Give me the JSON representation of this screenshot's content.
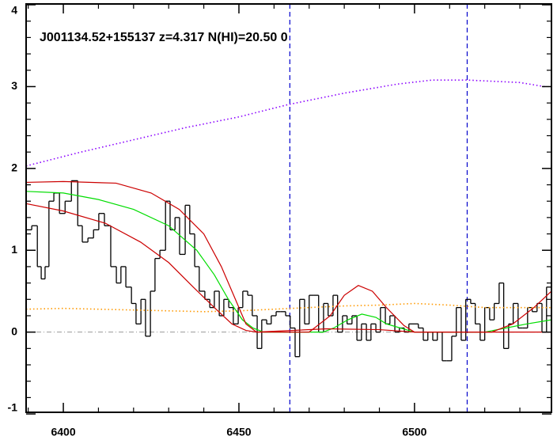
{
  "chart_data": {
    "type": "line",
    "title": "J001134.52+155137 z=4.317 N(HI)=20.50 0",
    "xlim": [
      6389.4,
      6539
    ],
    "ylim": [
      -0.98,
      4.01
    ],
    "xticks": [
      6400,
      6450,
      6500
    ],
    "yticks": [
      -1,
      0,
      1,
      2,
      3,
      4
    ],
    "xminorticks": [
      6390,
      6410,
      6420,
      6430,
      6440,
      6460,
      6470,
      6480,
      6490,
      6510,
      6520,
      6530
    ],
    "yminorticks": [
      -0.8,
      -0.6,
      -0.4,
      -0.2,
      0.2,
      0.4,
      0.6,
      0.8,
      1.2,
      1.4,
      1.6,
      1.8,
      2.2,
      2.4,
      2.6,
      2.8,
      3.2,
      3.4,
      3.6,
      3.8
    ],
    "hlines": [
      {
        "value": 0,
        "color": "#999999"
      }
    ],
    "vlines": [
      {
        "value": 6464.5,
        "color": "#0000cc"
      },
      {
        "value": 6515.0,
        "color": "#0000cc"
      }
    ],
    "series": [
      {
        "style": "steps",
        "color": "#000000",
        "x": [
          6389.4,
          6391.0,
          6392.6,
          6393.7,
          6394.8,
          6395.9,
          6397.3,
          6398.9,
          6400.5,
          6402.3,
          6404.1,
          6405.4,
          6407.0,
          6408.6,
          6410.1,
          6411.7,
          6413.5,
          6415.1,
          6416.4,
          6417.8,
          6419.4,
          6420.7,
          6422.1,
          6423.4,
          6424.8,
          6426.1,
          6427.5,
          6429.1,
          6430.4,
          6431.8,
          6433.1,
          6434.7,
          6436.0,
          6437.4,
          6438.7,
          6440.3,
          6441.7,
          6443.0,
          6444.4,
          6445.7,
          6447.1,
          6448.4,
          6449.8,
          6451.1,
          6452.5,
          6453.8,
          6455.2,
          6456.5,
          6457.9,
          6459.2,
          6460.6,
          6461.9,
          6463.3,
          6464.6,
          6466.0,
          6467.3,
          6468.7,
          6470.0,
          6471.4,
          6472.7,
          6474.1,
          6475.4,
          6476.8,
          6478.1,
          6479.5,
          6480.8,
          6482.2,
          6483.6,
          6484.9,
          6486.3,
          6487.6,
          6489.0,
          6490.3,
          6491.7,
          6493.0,
          6494.4,
          6495.7,
          6497.1,
          6498.4,
          6499.8,
          6501.1,
          6502.5,
          6503.8,
          6505.2,
          6506.5,
          6507.9,
          6509.2,
          6510.6,
          6511.9,
          6513.3,
          6514.6,
          6516.0,
          6517.3,
          6518.7,
          6520.0,
          6521.4,
          6522.7,
          6524.1,
          6525.4,
          6526.8,
          6528.1,
          6529.5,
          6530.8,
          6532.2,
          6533.5,
          6534.9,
          6536.3,
          6537.6
        ],
        "values": [
          1.25,
          1.3,
          0.8,
          0.65,
          0.8,
          1.6,
          1.7,
          1.45,
          1.6,
          1.85,
          1.3,
          1.1,
          1.15,
          1.25,
          1.45,
          1.3,
          0.8,
          0.6,
          0.8,
          0.55,
          0.35,
          0.1,
          0.4,
          -0.05,
          0.5,
          0.9,
          1.0,
          1.6,
          1.25,
          1.4,
          0.95,
          1.55,
          1.2,
          0.8,
          0.5,
          0.4,
          0.3,
          0.5,
          0.2,
          0.4,
          0.3,
          0.1,
          0.3,
          0.5,
          0.45,
          0.2,
          -0.2,
          0.15,
          0.1,
          0.2,
          0.25,
          0.25,
          0.2,
          0.05,
          -0.3,
          0.4,
          0.1,
          0.45,
          0.45,
          0.0,
          0.35,
          0.2,
          0.45,
          0.0,
          0.2,
          0.1,
          0.2,
          -0.1,
          0.1,
          -0.1,
          0.1,
          0.0,
          0.3,
          0.1,
          0.2,
          0.0,
          0.05,
          0.0,
          0.1,
          0.1,
          0.05,
          -0.1,
          0.0,
          -0.1,
          0.0,
          -0.35,
          -0.35,
          -0.05,
          0.3,
          -0.1,
          0.4,
          0.35,
          0.1,
          -0.1,
          0.3,
          0.15,
          0.35,
          0.6,
          -0.2,
          0.1,
          0.35,
          0.05,
          0.05,
          0.3,
          0.25,
          0.35,
          0.0,
          0.55
        ]
      },
      {
        "style": "dotted",
        "color": "#8a00ff",
        "x": [
          6389.4,
          6405,
          6420,
          6435,
          6450,
          6464,
          6480,
          6495,
          6505,
          6515,
          6530,
          6537
        ],
        "values": [
          2.03,
          2.2,
          2.35,
          2.5,
          2.63,
          2.78,
          2.92,
          3.03,
          3.08,
          3.08,
          3.05,
          3.0
        ]
      },
      {
        "style": "dotted",
        "color": "#ff9900",
        "x": [
          6389.4,
          6400,
          6410,
          6420,
          6430,
          6440,
          6450,
          6460,
          6470,
          6480,
          6490,
          6500,
          6510,
          6520,
          6530,
          6539
        ],
        "values": [
          0.28,
          0.29,
          0.28,
          0.27,
          0.26,
          0.25,
          0.26,
          0.28,
          0.3,
          0.32,
          0.33,
          0.35,
          0.33,
          0.3,
          0.3,
          0.3
        ]
      },
      {
        "style": "solid",
        "color": "#00dd00",
        "x": [
          6389.4,
          6400,
          6410,
          6420,
          6430,
          6438,
          6443,
          6447,
          6451,
          6454,
          6457,
          6474,
          6477,
          6481,
          6485,
          6489,
          6492,
          6496,
          6500,
          6520,
          6526,
          6532,
          6539
        ],
        "values": [
          1.72,
          1.7,
          1.62,
          1.5,
          1.3,
          1.0,
          0.7,
          0.4,
          0.15,
          0.05,
          0,
          0,
          0.05,
          0.15,
          0.22,
          0.18,
          0.1,
          0.05,
          0,
          0,
          0.05,
          0.1,
          0.15
        ]
      },
      {
        "style": "solid",
        "color": "#cc0000",
        "x": [
          6389.4,
          6400,
          6415,
          6425,
          6433,
          6440,
          6445,
          6449,
          6452,
          6455,
          6470,
          6476,
          6480,
          6484,
          6488,
          6492,
          6497,
          6500,
          6522,
          6528,
          6534,
          6539
        ],
        "values": [
          1.83,
          1.84,
          1.82,
          1.7,
          1.5,
          1.2,
          0.8,
          0.4,
          0.1,
          0,
          0,
          0.2,
          0.45,
          0.57,
          0.5,
          0.3,
          0.08,
          0,
          0,
          0.1,
          0.3,
          0.5
        ]
      },
      {
        "style": "solid",
        "color": "#cc0000",
        "x": [
          6389.4,
          6400,
          6412,
          6422,
          6430,
          6437,
          6443,
          6448,
          6452,
          6455,
          6465,
          6475,
          6490,
          6500,
          6539
        ],
        "values": [
          1.57,
          1.48,
          1.33,
          1.1,
          0.85,
          0.55,
          0.3,
          0.1,
          0.02,
          0,
          0.02,
          0.04,
          0.03,
          0,
          0
        ]
      }
    ]
  }
}
